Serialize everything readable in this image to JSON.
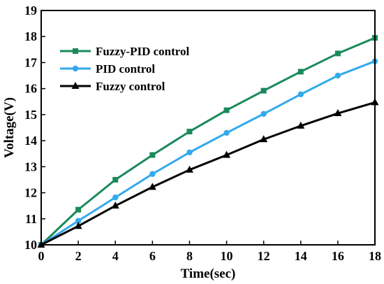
{
  "chart_data": {
    "type": "line",
    "xlabel": "Time(sec)",
    "ylabel": "Voltage(V)",
    "xlim": [
      0,
      18
    ],
    "ylim": [
      10,
      19
    ],
    "xticks": [
      0,
      2,
      4,
      6,
      8,
      10,
      12,
      14,
      16,
      18
    ],
    "yticks": [
      10,
      11,
      12,
      13,
      14,
      15,
      16,
      17,
      18,
      19
    ],
    "grid": false,
    "legend_position": "top-left",
    "x": [
      0,
      2,
      4,
      6,
      8,
      10,
      12,
      14,
      16,
      18
    ],
    "series": [
      {
        "name": "Fuzzy-PID control",
        "color": "#1a8a5a",
        "marker": "square",
        "values": [
          10.0,
          11.35,
          12.5,
          13.45,
          14.35,
          15.17,
          15.92,
          16.65,
          17.35,
          17.95
        ]
      },
      {
        "name": "PID control",
        "color": "#33a9ec",
        "marker": "circle",
        "values": [
          10.0,
          10.92,
          11.82,
          12.72,
          13.55,
          14.3,
          15.03,
          15.78,
          16.5,
          17.05
        ]
      },
      {
        "name": "Fuzzy control",
        "color": "#000000",
        "marker": "triangle",
        "values": [
          10.0,
          10.72,
          11.5,
          12.22,
          12.88,
          13.45,
          14.05,
          14.57,
          15.05,
          15.47
        ]
      }
    ]
  }
}
